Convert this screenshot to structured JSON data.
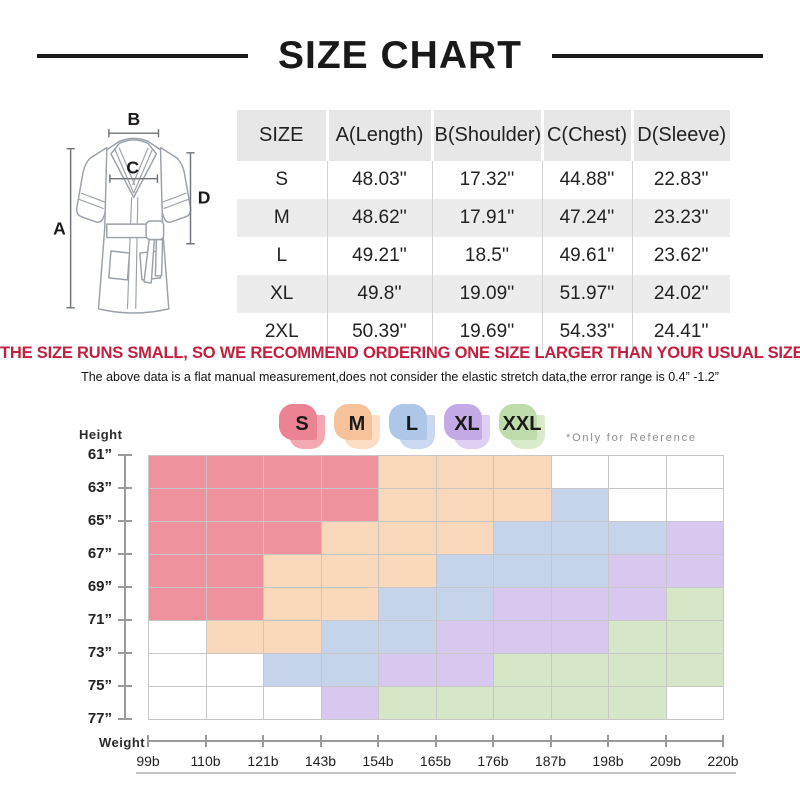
{
  "title": "SIZE CHART",
  "diagram": {
    "a": "A",
    "b": "B",
    "c": "C",
    "d": "D"
  },
  "size_table": {
    "headers": [
      "SIZE",
      "A(Length)",
      "B(Shoulder)",
      "C(Chest)",
      "D(Sleeve)"
    ],
    "rows": [
      [
        "S",
        "48.03''",
        "17.32''",
        "44.88''",
        "22.83''"
      ],
      [
        "M",
        "48.62''",
        "17.91''",
        "47.24''",
        "23.23''"
      ],
      [
        "L",
        "49.21''",
        "18.5''",
        "49.61''",
        "23.62''"
      ],
      [
        "XL",
        "49.8''",
        "19.09''",
        "51.97''",
        "24.02''"
      ],
      [
        "2XL",
        "50.39''",
        "19.69''",
        "54.33''",
        "24.41''"
      ]
    ]
  },
  "notice": "THE SIZE RUNS SMALL, SO WE RECOMMEND ORDERING ONE SIZE LARGER THAN YOUR USUAL SIZE.",
  "notice_color": "#C2203E",
  "disclaimer": "The above data is a flat manual measurement,does not consider the elastic stretch data,the error range is 0.4” -1.2”",
  "chart_data": {
    "type": "heatmap",
    "note": "*Only for Reference",
    "x_axis_label": "Weight",
    "y_axis_label": "Height",
    "x_ticks": [
      "99b",
      "110b",
      "121b",
      "143b",
      "154b",
      "165b",
      "176b",
      "187b",
      "198b",
      "209b",
      "220b"
    ],
    "y_ticks": [
      "61”",
      "63”",
      "65”",
      "67”",
      "69”",
      "71”",
      "73”",
      "75”",
      "77”"
    ],
    "legend": [
      {
        "label": "S",
        "front": "#EC8394",
        "back": "#F3A8B2"
      },
      {
        "label": "M",
        "front": "#F7C299",
        "back": "#FBDEC4"
      },
      {
        "label": "L",
        "front": "#AEC6E8",
        "back": "#CBD9F0"
      },
      {
        "label": "XL",
        "front": "#C3A9E5",
        "back": "#DECFF3"
      },
      {
        "label": "XXL",
        "front": "#BEDCAB",
        "back": "#D9EBCB"
      }
    ],
    "cell_colors": {
      "S": "#F0929E",
      "M": "#FAD8BB",
      "L": "#C5D3EB",
      "XL": "#D8C7EF",
      "XXL": "#D6E7C8",
      "_": "#FFFFFF"
    },
    "grid": [
      [
        "S",
        "S",
        "S",
        "S",
        "M",
        "M",
        "M",
        "_",
        "_",
        "_"
      ],
      [
        "S",
        "S",
        "S",
        "S",
        "M",
        "M",
        "M",
        "L",
        "_",
        "_"
      ],
      [
        "S",
        "S",
        "S",
        "M",
        "M",
        "M",
        "L",
        "L",
        "L",
        "XL"
      ],
      [
        "S",
        "S",
        "M",
        "M",
        "M",
        "L",
        "L",
        "L",
        "XL",
        "XL"
      ],
      [
        "S",
        "S",
        "M",
        "M",
        "L",
        "L",
        "XL",
        "XL",
        "XL",
        "XXL"
      ],
      [
        "_",
        "M",
        "M",
        "L",
        "L",
        "XL",
        "XL",
        "XL",
        "XXL",
        "XXL"
      ],
      [
        "_",
        "_",
        "L",
        "L",
        "XL",
        "XL",
        "XXL",
        "XXL",
        "XXL",
        "XXL"
      ],
      [
        "_",
        "_",
        "_",
        "XL",
        "XXL",
        "XXL",
        "XXL",
        "XXL",
        "XXL",
        "_"
      ]
    ]
  }
}
